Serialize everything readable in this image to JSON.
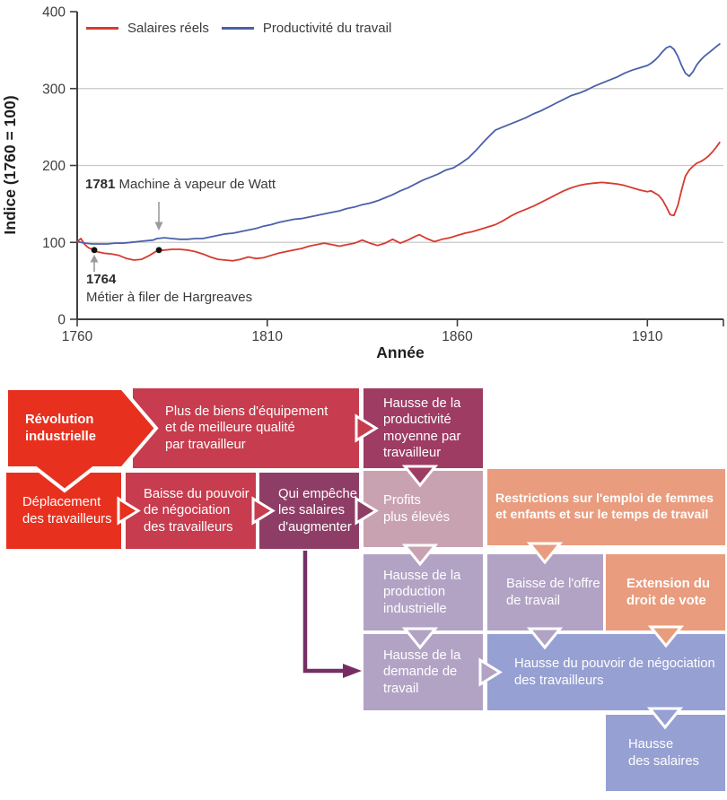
{
  "palette": {
    "bright_red": "#e8301f",
    "crimson": "#c73c4e",
    "dark_magenta": "#9e3c63",
    "raspberry": "#8e3e66",
    "dusty_pink": "#c9a2b2",
    "mauve": "#b2a3c5",
    "salmon": "#e99c7e",
    "periwinkle": "#96a0d2",
    "elbow_arrow": "#762d64",
    "wages_line": "#d63b2f",
    "productivity_line": "#4a60a8",
    "gridline": "#c9c9c9",
    "axis": "#3f3f3f",
    "annotation_arrow": "#9b9b9b"
  },
  "chart": {
    "legend": [
      {
        "label": "Salaires réels"
      },
      {
        "label": "Productivité du travail"
      }
    ],
    "annotations": {
      "watt": {
        "year": "1781",
        "label": "Machine à vapeur de Watt"
      },
      "hargreaves": {
        "year": "1764",
        "label": "Métier à filer de Hargreaves"
      }
    }
  },
  "chart_data": {
    "type": "line",
    "title": "",
    "xlabel": "Année",
    "ylabel": "Indice (1760 = 100)",
    "xlim": [
      1760,
      1930
    ],
    "ylim": [
      0,
      400
    ],
    "x_ticks": [
      1760,
      1810,
      1860,
      1910
    ],
    "y_ticks": [
      0,
      100,
      200,
      300,
      400
    ],
    "gridlines_y": [
      100,
      200,
      300
    ],
    "legend_position": "top-left",
    "series": [
      {
        "name": "Salaires réels",
        "color": "#d63b2f",
        "points": [
          [
            1760,
            101
          ],
          [
            1761,
            105
          ],
          [
            1762,
            97
          ],
          [
            1763,
            93
          ],
          [
            1764,
            91
          ],
          [
            1765,
            88
          ],
          [
            1767,
            86
          ],
          [
            1769,
            85
          ],
          [
            1771,
            83
          ],
          [
            1773,
            79
          ],
          [
            1775,
            77
          ],
          [
            1777,
            78
          ],
          [
            1779,
            83
          ],
          [
            1781,
            89
          ],
          [
            1783,
            90
          ],
          [
            1785,
            91
          ],
          [
            1787,
            91
          ],
          [
            1789,
            90
          ],
          [
            1791,
            88
          ],
          [
            1793,
            85
          ],
          [
            1795,
            81
          ],
          [
            1797,
            78
          ],
          [
            1799,
            77
          ],
          [
            1801,
            76
          ],
          [
            1803,
            78
          ],
          [
            1805,
            81
          ],
          [
            1807,
            79
          ],
          [
            1809,
            80
          ],
          [
            1811,
            83
          ],
          [
            1813,
            86
          ],
          [
            1815,
            88
          ],
          [
            1817,
            90
          ],
          [
            1819,
            92
          ],
          [
            1821,
            95
          ],
          [
            1823,
            97
          ],
          [
            1825,
            99
          ],
          [
            1827,
            97
          ],
          [
            1829,
            95
          ],
          [
            1831,
            97
          ],
          [
            1833,
            99
          ],
          [
            1835,
            103
          ],
          [
            1837,
            99
          ],
          [
            1839,
            96
          ],
          [
            1841,
            99
          ],
          [
            1843,
            104
          ],
          [
            1845,
            99
          ],
          [
            1847,
            103
          ],
          [
            1849,
            108
          ],
          [
            1850,
            110
          ],
          [
            1852,
            105
          ],
          [
            1854,
            101
          ],
          [
            1856,
            104
          ],
          [
            1858,
            106
          ],
          [
            1860,
            109
          ],
          [
            1862,
            112
          ],
          [
            1864,
            114
          ],
          [
            1866,
            117
          ],
          [
            1868,
            120
          ],
          [
            1870,
            123
          ],
          [
            1872,
            128
          ],
          [
            1874,
            134
          ],
          [
            1876,
            139
          ],
          [
            1878,
            143
          ],
          [
            1880,
            147
          ],
          [
            1882,
            152
          ],
          [
            1884,
            157
          ],
          [
            1886,
            162
          ],
          [
            1888,
            167
          ],
          [
            1890,
            171
          ],
          [
            1892,
            174
          ],
          [
            1894,
            176
          ],
          [
            1896,
            177
          ],
          [
            1898,
            178
          ],
          [
            1900,
            177
          ],
          [
            1902,
            176
          ],
          [
            1904,
            174
          ],
          [
            1906,
            171
          ],
          [
            1908,
            168
          ],
          [
            1910,
            166
          ],
          [
            1911,
            167
          ],
          [
            1913,
            161
          ],
          [
            1914,
            155
          ],
          [
            1915,
            146
          ],
          [
            1916,
            136
          ],
          [
            1917,
            135
          ],
          [
            1918,
            148
          ],
          [
            1919,
            168
          ],
          [
            1920,
            186
          ],
          [
            1921,
            194
          ],
          [
            1922,
            199
          ],
          [
            1923,
            203
          ],
          [
            1924,
            205
          ],
          [
            1925,
            208
          ],
          [
            1926,
            212
          ],
          [
            1927,
            217
          ],
          [
            1928,
            223
          ],
          [
            1929,
            230
          ]
        ]
      },
      {
        "name": "Productivité du travail",
        "color": "#4a60a8",
        "points": [
          [
            1760,
            101
          ],
          [
            1762,
            99
          ],
          [
            1764,
            98
          ],
          [
            1766,
            98
          ],
          [
            1768,
            98
          ],
          [
            1770,
            99
          ],
          [
            1772,
            99
          ],
          [
            1774,
            100
          ],
          [
            1776,
            101
          ],
          [
            1778,
            102
          ],
          [
            1780,
            103
          ],
          [
            1781,
            105
          ],
          [
            1783,
            106
          ],
          [
            1785,
            105
          ],
          [
            1787,
            104
          ],
          [
            1789,
            104
          ],
          [
            1791,
            105
          ],
          [
            1793,
            105
          ],
          [
            1795,
            107
          ],
          [
            1797,
            109
          ],
          [
            1799,
            111
          ],
          [
            1801,
            112
          ],
          [
            1803,
            114
          ],
          [
            1805,
            116
          ],
          [
            1807,
            118
          ],
          [
            1809,
            121
          ],
          [
            1811,
            123
          ],
          [
            1813,
            126
          ],
          [
            1815,
            128
          ],
          [
            1817,
            130
          ],
          [
            1819,
            131
          ],
          [
            1821,
            133
          ],
          [
            1823,
            135
          ],
          [
            1825,
            137
          ],
          [
            1827,
            139
          ],
          [
            1829,
            141
          ],
          [
            1831,
            144
          ],
          [
            1833,
            146
          ],
          [
            1835,
            149
          ],
          [
            1837,
            151
          ],
          [
            1839,
            154
          ],
          [
            1841,
            158
          ],
          [
            1843,
            162
          ],
          [
            1845,
            167
          ],
          [
            1847,
            171
          ],
          [
            1849,
            176
          ],
          [
            1851,
            181
          ],
          [
            1853,
            185
          ],
          [
            1855,
            189
          ],
          [
            1857,
            194
          ],
          [
            1859,
            197
          ],
          [
            1861,
            203
          ],
          [
            1863,
            210
          ],
          [
            1865,
            220
          ],
          [
            1867,
            231
          ],
          [
            1869,
            241
          ],
          [
            1870,
            246
          ],
          [
            1872,
            250
          ],
          [
            1874,
            254
          ],
          [
            1876,
            258
          ],
          [
            1878,
            262
          ],
          [
            1880,
            267
          ],
          [
            1882,
            271
          ],
          [
            1884,
            276
          ],
          [
            1886,
            281
          ],
          [
            1888,
            286
          ],
          [
            1890,
            291
          ],
          [
            1892,
            294
          ],
          [
            1894,
            298
          ],
          [
            1896,
            303
          ],
          [
            1898,
            307
          ],
          [
            1900,
            311
          ],
          [
            1902,
            315
          ],
          [
            1904,
            320
          ],
          [
            1906,
            324
          ],
          [
            1908,
            327
          ],
          [
            1910,
            330
          ],
          [
            1911,
            333
          ],
          [
            1912,
            337
          ],
          [
            1913,
            342
          ],
          [
            1914,
            348
          ],
          [
            1915,
            353
          ],
          [
            1916,
            355
          ],
          [
            1917,
            351
          ],
          [
            1918,
            342
          ],
          [
            1919,
            330
          ],
          [
            1920,
            320
          ],
          [
            1921,
            316
          ],
          [
            1922,
            322
          ],
          [
            1923,
            331
          ],
          [
            1924,
            337
          ],
          [
            1925,
            342
          ],
          [
            1926,
            346
          ],
          [
            1927,
            350
          ],
          [
            1928,
            354
          ],
          [
            1929,
            358
          ]
        ]
      }
    ],
    "markers": [
      {
        "year": 1764.5,
        "value": 90,
        "meaning": "1764 Métier à filer de Hargreaves"
      },
      {
        "year": 1781.5,
        "value": 90,
        "meaning": "1781 Machine à vapeur de Watt"
      }
    ]
  },
  "diagram": {
    "boxes": {
      "revolution": "Révolution\nindustrielle",
      "biens": "Plus de biens d'équipement\net de meilleure qualité\npar travailleur",
      "deplacement": "Déplacement\ndes travailleurs",
      "baisse_pouvoir": "Baisse du pouvoir\nde négociation\ndes travailleurs",
      "qui_empeche": "Qui empêche\nles salaires\nd'augmenter",
      "hausse_productivite": "Hausse de la\nproductivité\nmoyenne par\ntravailleur",
      "profits": "Profits\nplus élevés",
      "restrictions": "Restrictions sur l'emploi de femmes\net enfants et sur le temps de travail",
      "hausse_production": "Hausse de la\nproduction\nindustrielle",
      "baisse_offre": "Baisse de l'offre\nde travail",
      "extension_vote": "Extension du\ndroit de vote",
      "hausse_demande": "Hausse de la\ndemande de\ntravail",
      "hausse_pouvoir": "Hausse du pouvoir de négociation\ndes travailleurs",
      "hausse_salaires": "Hausse\ndes salaires"
    }
  }
}
